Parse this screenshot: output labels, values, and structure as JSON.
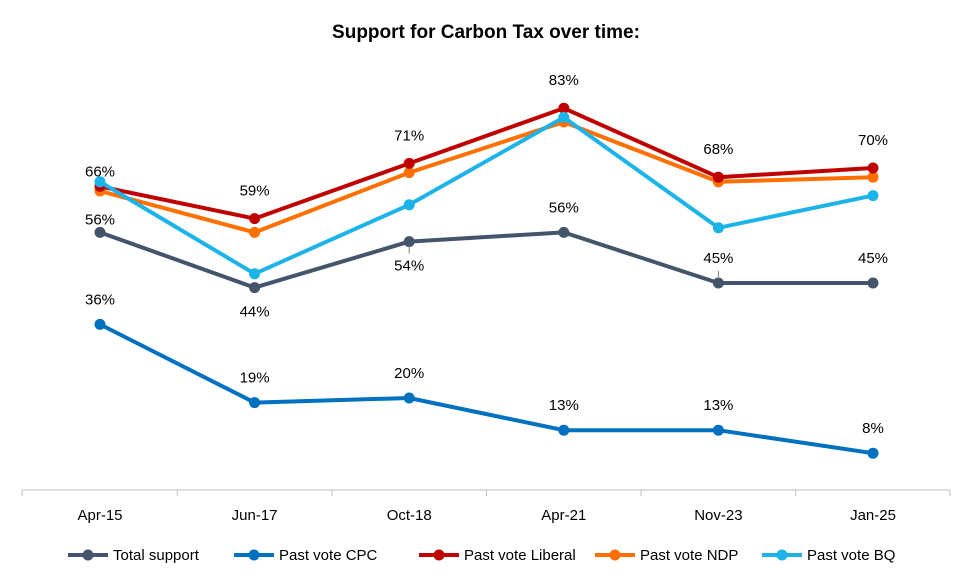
{
  "chart_data": {
    "type": "line",
    "title": "Support for Carbon Tax over time:",
    "xlabel": "",
    "ylabel": "",
    "ylim": [
      0,
      100
    ],
    "grid": false,
    "legend_position": "bottom",
    "categories": [
      "Apr-15",
      "Jun-17",
      "Oct-18",
      "Apr-21",
      "Nov-23",
      "Jan-25"
    ],
    "series": [
      {
        "name": "Total support",
        "color": "#44546A",
        "values": [
          56,
          44,
          54,
          56,
          45,
          45
        ]
      },
      {
        "name": "Past vote CPC",
        "color": "#0070C0",
        "values": [
          36,
          19,
          20,
          13,
          13,
          8
        ]
      },
      {
        "name": "Past vote Liberal",
        "color": "#C00000",
        "values": [
          66,
          59,
          71,
          83,
          68,
          70
        ]
      },
      {
        "name": "Past vote NDP",
        "color": "#FF7000",
        "values": [
          65,
          56,
          69,
          80,
          67,
          68
        ]
      },
      {
        "name": "Past vote BQ",
        "color": "#1CB4E8",
        "values": [
          67,
          47,
          62,
          81,
          57,
          64
        ]
      }
    ],
    "data_labels": [
      {
        "series": 0,
        "index": 0,
        "text": "56%"
      },
      {
        "series": 0,
        "index": 1,
        "text": "44%"
      },
      {
        "series": 0,
        "index": 2,
        "text": "54%"
      },
      {
        "series": 0,
        "index": 3,
        "text": "56%"
      },
      {
        "series": 0,
        "index": 4,
        "text": "45%"
      },
      {
        "series": 0,
        "index": 5,
        "text": "45%"
      },
      {
        "series": 1,
        "index": 0,
        "text": "36%"
      },
      {
        "series": 1,
        "index": 1,
        "text": "19%"
      },
      {
        "series": 1,
        "index": 2,
        "text": "20%"
      },
      {
        "series": 1,
        "index": 3,
        "text": "13%"
      },
      {
        "series": 1,
        "index": 4,
        "text": "13%"
      },
      {
        "series": 1,
        "index": 5,
        "text": "8%"
      },
      {
        "series": 2,
        "index": 0,
        "text": "66%"
      },
      {
        "series": 2,
        "index": 1,
        "text": "59%"
      },
      {
        "series": 2,
        "index": 2,
        "text": "71%"
      },
      {
        "series": 2,
        "index": 3,
        "text": "83%"
      },
      {
        "series": 2,
        "index": 4,
        "text": "68%"
      },
      {
        "series": 2,
        "index": 5,
        "text": "70%"
      }
    ]
  }
}
